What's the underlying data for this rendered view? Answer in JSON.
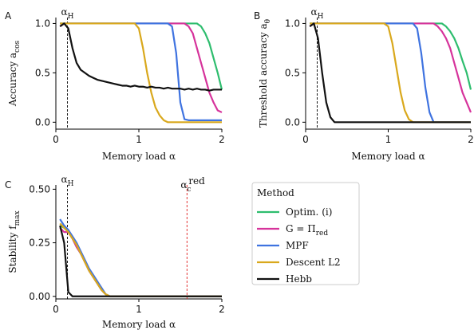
{
  "chart_data": [
    {
      "type": "line",
      "panel": "A",
      "ylabel": "Accuracy a",
      "ylabel_sub": "cos",
      "xlabel": "Memory load α",
      "xlim": [
        0,
        2
      ],
      "ylim": [
        -0.07,
        1.06
      ],
      "xticks": [
        0,
        1,
        2
      ],
      "yticks": [
        {
          "value": 0,
          "label": "0.0"
        },
        {
          "value": 0.5,
          "label": "0.5"
        },
        {
          "value": 1,
          "label": "1.0"
        }
      ],
      "vlines": [
        {
          "x": 0.14,
          "label": "α",
          "sub": "H",
          "color": "#000000"
        }
      ],
      "x": [
        0.05,
        0.1,
        0.15,
        0.2,
        0.25,
        0.3,
        0.35,
        0.4,
        0.45,
        0.5,
        0.55,
        0.6,
        0.65,
        0.7,
        0.75,
        0.8,
        0.85,
        0.9,
        0.95,
        1,
        1.05,
        1.1,
        1.15,
        1.2,
        1.25,
        1.3,
        1.35,
        1.4,
        1.45,
        1.5,
        1.55,
        1.6,
        1.65,
        1.7,
        1.75,
        1.8,
        1.85,
        1.9,
        1.95,
        2
      ],
      "series": [
        {
          "name": "Optim. (i)",
          "color": "#2ebd6e",
          "values": [
            1,
            1,
            1,
            1,
            1,
            1,
            1,
            1,
            1,
            1,
            1,
            1,
            1,
            1,
            1,
            1,
            1,
            1,
            1,
            1,
            1,
            1,
            1,
            1,
            1,
            1,
            1,
            1,
            1,
            1,
            1,
            1,
            1,
            1,
            0.97,
            0.9,
            0.8,
            0.65,
            0.5,
            0.33
          ]
        },
        {
          "name": "G = Π",
          "name_sub": "red",
          "color": "#d6339b",
          "values": [
            0.97,
            1,
            1,
            1,
            1,
            1,
            1,
            1,
            1,
            1,
            1,
            1,
            1,
            1,
            1,
            1,
            1,
            1,
            1,
            1,
            1,
            1,
            1,
            1,
            1,
            1,
            1,
            1,
            1,
            1,
            1,
            0.97,
            0.9,
            0.75,
            0.6,
            0.45,
            0.3,
            0.2,
            0.12,
            0.1
          ]
        },
        {
          "name": "MPF",
          "color": "#3f73e0",
          "values": [
            1,
            1,
            1,
            1,
            1,
            1,
            1,
            1,
            1,
            1,
            1,
            1,
            1,
            1,
            1,
            1,
            1,
            1,
            1,
            1,
            1,
            1,
            1,
            1,
            1,
            1,
            1,
            0.97,
            0.7,
            0.2,
            0.03,
            0.02,
            0.02,
            0.02,
            0.02,
            0.02,
            0.02,
            0.02,
            0.02,
            0.02
          ]
        },
        {
          "name": "Descent L2",
          "color": "#d9a81c",
          "values": [
            1,
            1,
            1,
            1,
            1,
            1,
            1,
            1,
            1,
            1,
            1,
            1,
            1,
            1,
            1,
            1,
            1,
            1,
            1,
            0.95,
            0.75,
            0.5,
            0.3,
            0.15,
            0.07,
            0.02,
            0,
            0,
            0,
            0,
            0,
            0,
            0,
            0,
            0,
            0,
            0,
            0,
            0,
            0
          ]
        },
        {
          "name": "Hebb",
          "color": "#111111",
          "values": [
            0.97,
            1,
            0.95,
            0.75,
            0.6,
            0.53,
            0.5,
            0.47,
            0.45,
            0.43,
            0.42,
            0.41,
            0.4,
            0.39,
            0.38,
            0.37,
            0.37,
            0.36,
            0.37,
            0.36,
            0.36,
            0.35,
            0.36,
            0.35,
            0.35,
            0.34,
            0.35,
            0.34,
            0.34,
            0.34,
            0.33,
            0.34,
            0.33,
            0.34,
            0.33,
            0.33,
            0.32,
            0.33,
            0.33,
            0.33
          ]
        }
      ]
    },
    {
      "type": "line",
      "panel": "B",
      "ylabel": "Threshold accuracy a",
      "ylabel_sub": "θ",
      "xlabel": "Memory load α",
      "xlim": [
        0,
        2
      ],
      "ylim": [
        -0.07,
        1.06
      ],
      "xticks": [
        0,
        1,
        2
      ],
      "yticks": [
        {
          "value": 0,
          "label": "0.0"
        },
        {
          "value": 0.5,
          "label": "0.5"
        },
        {
          "value": 1,
          "label": "1.0"
        }
      ],
      "vlines": [
        {
          "x": 0.14,
          "label": "α",
          "sub": "H",
          "color": "#000000"
        }
      ],
      "x": [
        0.05,
        0.1,
        0.15,
        0.2,
        0.25,
        0.3,
        0.35,
        0.4,
        0.45,
        0.5,
        0.55,
        0.6,
        0.65,
        0.7,
        0.75,
        0.8,
        0.85,
        0.9,
        0.95,
        1,
        1.05,
        1.1,
        1.15,
        1.2,
        1.25,
        1.3,
        1.35,
        1.4,
        1.45,
        1.5,
        1.55,
        1.6,
        1.65,
        1.7,
        1.75,
        1.8,
        1.85,
        1.9,
        1.95,
        2
      ],
      "series": [
        {
          "name": "Optim. (i)",
          "color": "#2ebd6e",
          "values": [
            1,
            1,
            1,
            1,
            1,
            1,
            1,
            1,
            1,
            1,
            1,
            1,
            1,
            1,
            1,
            1,
            1,
            1,
            1,
            1,
            1,
            1,
            1,
            1,
            1,
            1,
            1,
            1,
            1,
            1,
            1,
            1,
            1,
            0.97,
            0.92,
            0.85,
            0.75,
            0.62,
            0.5,
            0.33
          ]
        },
        {
          "name": "G = Π",
          "name_sub": "red",
          "color": "#d6339b",
          "values": [
            0.97,
            1,
            1,
            1,
            1,
            1,
            1,
            1,
            1,
            1,
            1,
            1,
            1,
            1,
            1,
            1,
            1,
            1,
            1,
            1,
            1,
            1,
            1,
            1,
            1,
            1,
            1,
            1,
            1,
            1,
            1,
            0.97,
            0.92,
            0.85,
            0.75,
            0.6,
            0.45,
            0.3,
            0.2,
            0.1
          ]
        },
        {
          "name": "MPF",
          "color": "#3f73e0",
          "values": [
            1,
            1,
            1,
            1,
            1,
            1,
            1,
            1,
            1,
            1,
            1,
            1,
            1,
            1,
            1,
            1,
            1,
            1,
            1,
            1,
            1,
            1,
            1,
            1,
            1,
            1,
            0.95,
            0.7,
            0.35,
            0.1,
            0,
            0,
            0,
            0,
            0,
            0,
            0,
            0,
            0,
            0
          ]
        },
        {
          "name": "Descent L2",
          "color": "#d9a81c",
          "values": [
            1,
            1,
            1,
            1,
            1,
            1,
            1,
            1,
            1,
            1,
            1,
            1,
            1,
            1,
            1,
            1,
            1,
            1,
            1,
            0.97,
            0.8,
            0.55,
            0.3,
            0.12,
            0.03,
            0,
            0,
            0,
            0,
            0,
            0,
            0,
            0,
            0,
            0,
            0,
            0,
            0,
            0,
            0
          ]
        },
        {
          "name": "Hebb",
          "color": "#111111",
          "values": [
            0.97,
            1,
            0.85,
            0.5,
            0.2,
            0.05,
            0,
            0,
            0,
            0,
            0,
            0,
            0,
            0,
            0,
            0,
            0,
            0,
            0,
            0,
            0,
            0,
            0,
            0,
            0,
            0,
            0,
            0,
            0,
            0,
            0,
            0,
            0,
            0,
            0,
            0,
            0,
            0,
            0,
            0
          ]
        }
      ]
    },
    {
      "type": "line",
      "panel": "C",
      "ylabel": "Stability f",
      "ylabel_sub": "max",
      "xlabel": "Memory load α",
      "xlim": [
        0,
        2
      ],
      "ylim": [
        -0.012,
        0.52
      ],
      "xticks": [
        0,
        1,
        2
      ],
      "yticks": [
        {
          "value": 0,
          "label": "0.00"
        },
        {
          "value": 0.25,
          "label": "0.25"
        },
        {
          "value": 0.5,
          "label": "0.50"
        }
      ],
      "vlines": [
        {
          "x": 0.14,
          "label": "α",
          "sub": "H",
          "color": "#000000"
        },
        {
          "x": 1.58,
          "label": "α",
          "sub": "c",
          "sup": "red",
          "color": "#e02020"
        }
      ],
      "legend_title": "Method",
      "x": [
        0.05,
        0.1,
        0.15,
        0.2,
        0.25,
        0.3,
        0.35,
        0.4,
        0.45,
        0.5,
        0.55,
        0.6,
        0.65,
        0.7,
        0.75,
        0.8,
        0.85,
        0.9,
        0.95,
        1,
        1.05,
        1.1,
        1.15,
        1.2,
        1.25,
        1.3,
        1.35,
        1.4,
        1.45,
        1.5,
        1.55,
        1.6,
        1.65,
        1.7,
        1.75,
        1.8,
        1.85,
        1.9,
        1.95,
        2
      ],
      "series": [
        {
          "name": "Optim. (i)",
          "color": "#2ebd6e",
          "values": [
            0.33,
            0.32,
            0.3,
            0.27,
            0.23,
            0.2,
            0.16,
            0.12,
            0.09,
            0.06,
            0.03,
            0.01,
            0,
            0,
            0,
            0,
            0,
            0,
            0,
            0,
            0,
            0,
            0,
            0,
            0,
            0,
            0,
            0,
            0,
            0,
            0,
            0,
            0,
            0,
            0,
            0,
            0,
            0,
            0,
            0
          ]
        },
        {
          "name": "G = Π",
          "name_sub": "red",
          "color": "#d6339b",
          "values": [
            0.32,
            0.3,
            0.3,
            0.27,
            0.23,
            0.2,
            0.16,
            0.12,
            0.09,
            0.06,
            0.03,
            0.01,
            0,
            0,
            0,
            0,
            0,
            0,
            0,
            0,
            0,
            0,
            0,
            0,
            0,
            0,
            0,
            0,
            0,
            0,
            0,
            0,
            0,
            0,
            0,
            0,
            0,
            0,
            0,
            0
          ]
        },
        {
          "name": "MPF",
          "color": "#3f73e0",
          "values": [
            0.36,
            0.33,
            0.31,
            0.28,
            0.25,
            0.21,
            0.17,
            0.13,
            0.1,
            0.07,
            0.04,
            0.01,
            0,
            0,
            0,
            0,
            0,
            0,
            0,
            0,
            0,
            0,
            0,
            0,
            0,
            0,
            0,
            0,
            0,
            0,
            0,
            0,
            0,
            0,
            0,
            0,
            0,
            0,
            0,
            0
          ]
        },
        {
          "name": "Descent L2",
          "color": "#d9a81c",
          "values": [
            0.34,
            0.32,
            0.3,
            0.27,
            0.24,
            0.2,
            0.16,
            0.12,
            0.09,
            0.06,
            0.03,
            0.01,
            0,
            0,
            0,
            0,
            0,
            0,
            0,
            0,
            0,
            0,
            0,
            0,
            0,
            0,
            0,
            0,
            0,
            0,
            0,
            0,
            0,
            0,
            0,
            0,
            0,
            0,
            0,
            0
          ]
        },
        {
          "name": "Hebb",
          "color": "#111111",
          "values": [
            0.33,
            0.25,
            0.02,
            0,
            0,
            0,
            0,
            0,
            0,
            0,
            0,
            0,
            0,
            0,
            0,
            0,
            0,
            0,
            0,
            0,
            0,
            0,
            0,
            0,
            0,
            0,
            0,
            0,
            0,
            0,
            0,
            0,
            0,
            0,
            0,
            0,
            0,
            0,
            0,
            0
          ]
        }
      ]
    }
  ]
}
